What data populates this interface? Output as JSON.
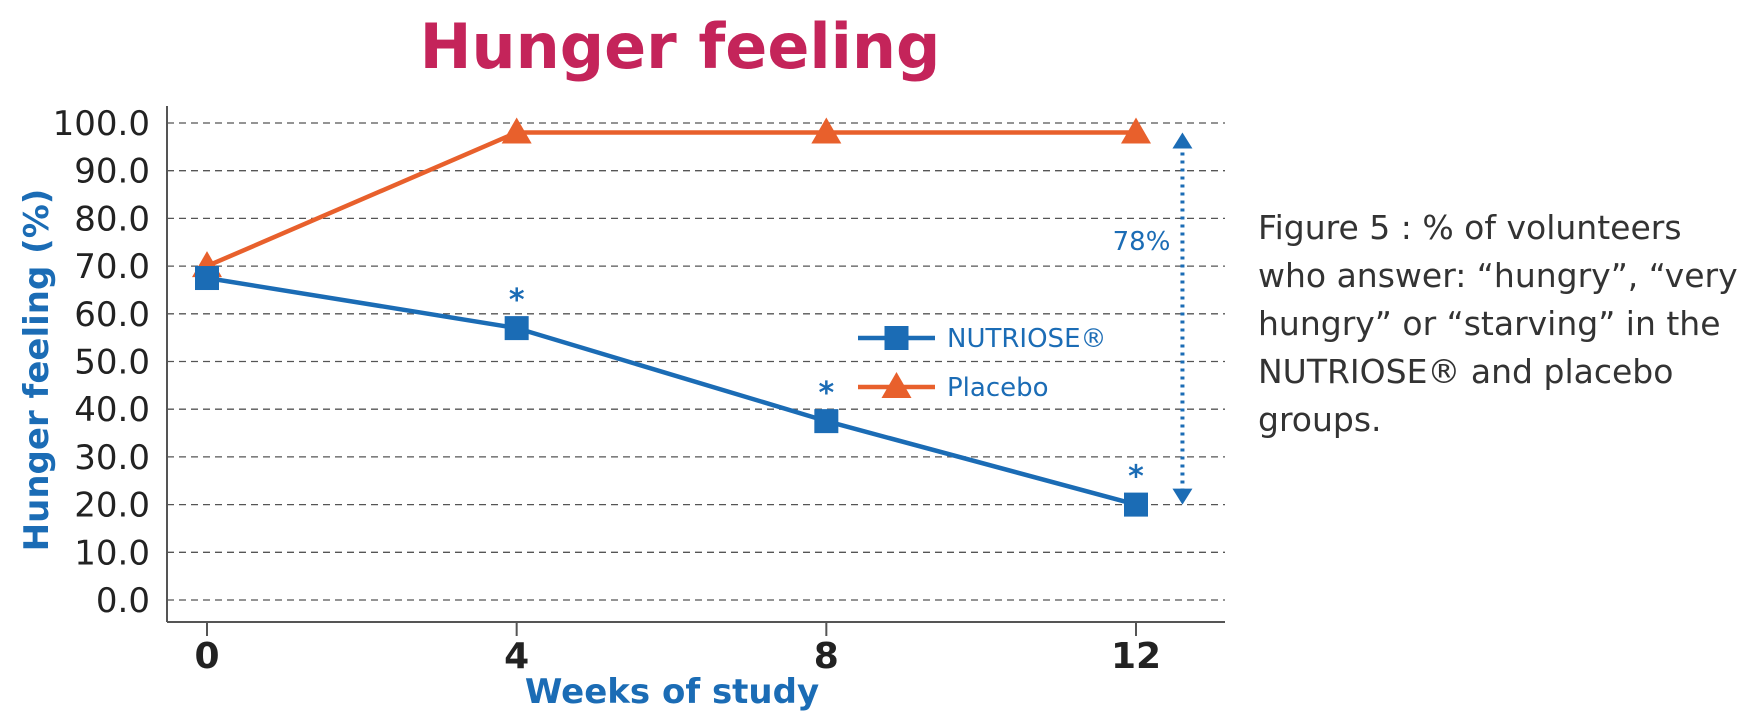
{
  "chart_data": {
    "type": "line",
    "title": "Hunger feeling",
    "xlabel": "Weeks of study",
    "ylabel": "Hunger feeling (%)",
    "x": [
      0,
      4,
      8,
      12
    ],
    "x_tick_labels": [
      "0",
      "4",
      "8",
      "12"
    ],
    "y_tick_labels": [
      "0.0",
      "10.0",
      "20.0",
      "30.0",
      "40.0",
      "50.0",
      "60.0",
      "70.0",
      "80.0",
      "90.0",
      "100.0"
    ],
    "ylim": [
      0,
      100
    ],
    "grid": "horizontal dashed",
    "legend_position": "center-right",
    "series": [
      {
        "name": "NUTRIOSE®",
        "values": [
          67.5,
          57,
          37.5,
          20
        ],
        "color": "#1b6cb5",
        "marker": "square",
        "significance": [
          "",
          "*",
          "*",
          "*"
        ]
      },
      {
        "name": "Placebo",
        "values": [
          70,
          98,
          98,
          98
        ],
        "color": "#e8602c",
        "marker": "triangle"
      }
    ],
    "annotation": {
      "label": "78%",
      "x": 12.6,
      "from": 20,
      "to": 98,
      "style": "dotted double arrow",
      "color": "#1b6cb5"
    }
  },
  "caption": "Figure 5 : % of volunteers who answer: “hungry”, “very hungry” or “starving” in the NUTRIOSE® and placebo groups."
}
